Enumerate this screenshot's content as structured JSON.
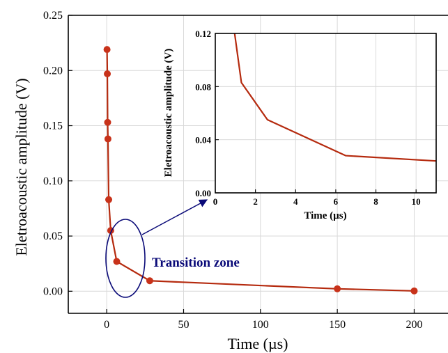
{
  "chart_data": [
    {
      "type": "line",
      "xlabel": "Time (µs)",
      "ylabel": "Eletroacoustic amplitude (V)",
      "xlim": [
        -25,
        222
      ],
      "ylim": [
        -0.02,
        0.25
      ],
      "x_ticks": [
        0,
        50,
        100,
        150,
        200
      ],
      "y_ticks": [
        0.0,
        0.05,
        0.1,
        0.15,
        0.2,
        0.25
      ],
      "x_tick_labels": [
        "0",
        "50",
        "100",
        "150",
        "200"
      ],
      "y_tick_labels": [
        "0.00",
        "0.05",
        "0.10",
        "0.15",
        "0.20",
        "0.25"
      ],
      "grid": true,
      "line_color": "#b52a0e",
      "marker_color": "#c8321a",
      "series": [
        {
          "x": [
            0.2,
            0.4,
            0.6,
            0.8,
            1.3,
            2.6,
            6.5,
            28,
            150,
            200
          ],
          "y": [
            0.219,
            0.197,
            0.153,
            0.138,
            0.083,
            0.055,
            0.027,
            0.0095,
            0.0022,
            0.0003
          ]
        }
      ],
      "annotation": {
        "text": "Transition zone",
        "color": "#0a0a78"
      }
    },
    {
      "type": "line",
      "inset": true,
      "xlabel": "Time (µs)",
      "ylabel": "Eletroacoustic amplitude (V)",
      "xlim": [
        0,
        11
      ],
      "ylim": [
        0,
        0.12
      ],
      "x_ticks": [
        0,
        2,
        4,
        6,
        8,
        10
      ],
      "y_ticks": [
        0.0,
        0.04,
        0.08,
        0.12
      ],
      "x_tick_labels": [
        "0",
        "2",
        "4",
        "6",
        "8",
        "10"
      ],
      "y_tick_labels": [
        "0.00",
        "0.04",
        "0.08",
        "0.12"
      ],
      "grid": true,
      "line_color": "#b52a0e",
      "series": [
        {
          "x": [
            0.8,
            1.3,
            2.6,
            6.5,
            11
          ],
          "y": [
            0.138,
            0.083,
            0.055,
            0.028,
            0.024
          ]
        }
      ]
    }
  ]
}
